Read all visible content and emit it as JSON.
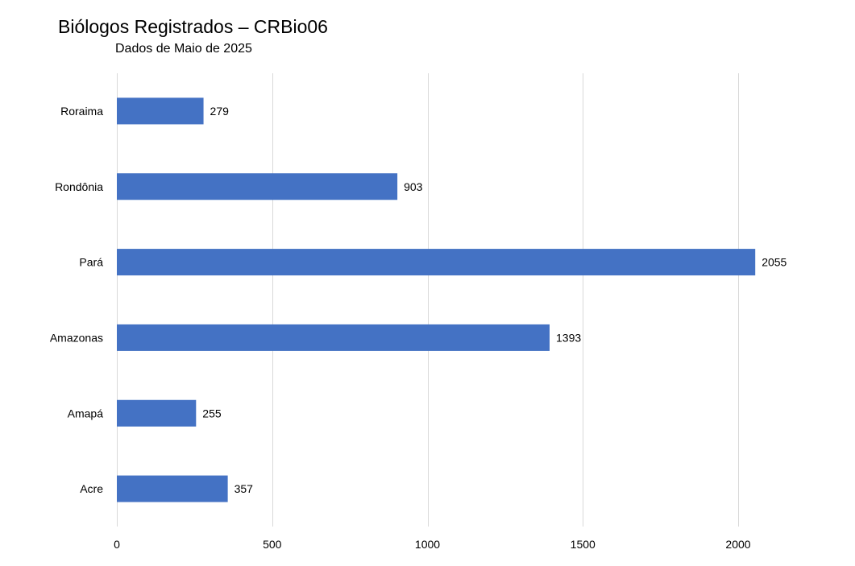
{
  "chart_data": {
    "type": "bar",
    "orientation": "horizontal",
    "title": "Biólogos Registrados – CRBio06",
    "subtitle": "Dados de Maio de 2025",
    "categories": [
      "Acre",
      "Amapá",
      "Amazonas",
      "Pará",
      "Rondônia",
      "Roraima"
    ],
    "values": [
      357,
      255,
      1393,
      2055,
      903,
      279
    ],
    "xlim": [
      0,
      2000
    ],
    "xticks": [
      0,
      500,
      1000,
      1500,
      2000
    ],
    "grid": "vertical",
    "data_labels": true,
    "bar_color": "#4472C4",
    "legend": "none"
  }
}
